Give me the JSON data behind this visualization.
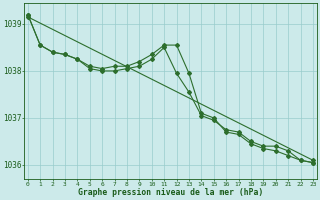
{
  "x": [
    0,
    1,
    2,
    3,
    4,
    5,
    6,
    7,
    8,
    9,
    10,
    11,
    12,
    13,
    14,
    15,
    16,
    17,
    18,
    19,
    20,
    21,
    22,
    23
  ],
  "line1": [
    1039.2,
    1038.55,
    1038.4,
    1038.35,
    1038.25,
    1038.05,
    1038.0,
    1038.0,
    1038.05,
    1038.1,
    1038.25,
    1038.5,
    1037.95,
    1037.55,
    1037.05,
    1036.95,
    1036.75,
    1036.7,
    1036.5,
    1036.4,
    1036.4,
    1036.3,
    1036.1,
    1036.05
  ],
  "line2": [
    1039.2,
    1038.55,
    1038.4,
    1038.35,
    1038.25,
    1038.1,
    1038.05,
    1038.1,
    1038.1,
    1038.2,
    1038.35,
    1038.55,
    1038.55,
    1037.95,
    1037.1,
    1037.0,
    1036.7,
    1036.65,
    1036.45,
    1036.35,
    1036.3,
    1036.2,
    1036.1,
    1036.05
  ],
  "line3": [
    1039.15,
    null,
    null,
    null,
    null,
    null,
    null,
    null,
    null,
    null,
    null,
    null,
    null,
    null,
    null,
    null,
    null,
    null,
    null,
    null,
    null,
    null,
    null,
    1036.1
  ],
  "line_diag": [
    1039.15,
    1038.7,
    1038.55,
    1038.5,
    1038.4,
    1038.15,
    1038.08,
    1038.05,
    1038.05,
    1038.12,
    1038.28,
    1038.55,
    1038.55,
    1037.97,
    1037.12,
    1037.02,
    1036.77,
    1036.72,
    1036.52,
    1036.37,
    1036.37,
    1036.27,
    1036.12,
    1036.07
  ],
  "ylim": [
    1035.7,
    1039.45
  ],
  "yticks": [
    1036,
    1037,
    1038,
    1039
  ],
  "xticks": [
    0,
    1,
    2,
    3,
    4,
    5,
    6,
    7,
    8,
    9,
    10,
    11,
    12,
    13,
    14,
    15,
    16,
    17,
    18,
    19,
    20,
    21,
    22,
    23
  ],
  "line_color": "#2d6e2d",
  "bg_color": "#cceaea",
  "grid_color": "#99cccc",
  "xlabel": "Graphe pression niveau de la mer (hPa)",
  "xlabel_color": "#1a5c1a",
  "tick_color": "#1a5c1a",
  "markersize": 2.0,
  "linewidth": 0.8
}
